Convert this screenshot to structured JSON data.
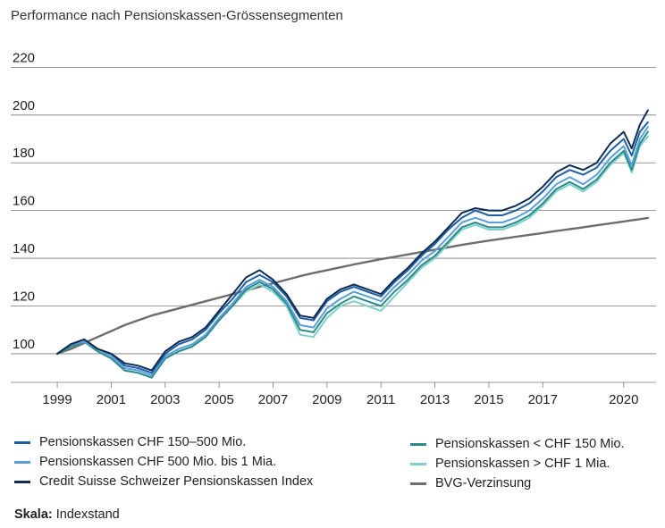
{
  "chart_data": {
    "type": "line",
    "title": "Performance nach Pensionskassen-Grössensegmenten",
    "xlabel": "",
    "ylabel": "",
    "xlim": [
      1998.6,
      2021.2
    ],
    "ylim": [
      88,
      225
    ],
    "yticks": [
      100,
      120,
      140,
      160,
      180,
      200,
      220
    ],
    "xticks": [
      "1999",
      "2001",
      "2003",
      "2005",
      "2007",
      "2009",
      "2011",
      "2013",
      "2015",
      "2017",
      "2020"
    ],
    "grid": "horizontal",
    "legend_position": "bottom",
    "x": [
      1999.0,
      1999.5,
      2000.0,
      2000.5,
      2001.0,
      2001.5,
      2002.0,
      2002.5,
      2003.0,
      2003.5,
      2004.0,
      2004.5,
      2005.0,
      2005.5,
      2006.0,
      2006.5,
      2007.0,
      2007.5,
      2008.0,
      2008.5,
      2009.0,
      2009.5,
      2010.0,
      2010.5,
      2011.0,
      2011.5,
      2012.0,
      2012.5,
      2013.0,
      2013.5,
      2014.0,
      2014.5,
      2015.0,
      2015.5,
      2016.0,
      2016.5,
      2017.0,
      2017.5,
      2018.0,
      2018.5,
      2019.0,
      2019.5,
      2020.0,
      2020.3,
      2020.6,
      2020.9
    ],
    "series": [
      {
        "name": "Pensionskassen CHF 150–500 Mio.",
        "color": "#1f5fa6",
        "values": [
          100,
          104,
          106,
          102,
          100,
          95,
          94,
          92,
          100,
          104,
          106,
          110,
          117,
          123,
          130,
          133,
          130,
          124,
          115,
          114,
          122,
          126,
          128,
          126,
          124,
          130,
          135,
          141,
          146,
          152,
          157,
          160,
          158,
          158,
          160,
          163,
          168,
          174,
          177,
          175,
          178,
          185,
          190,
          183,
          193,
          197
        ]
      },
      {
        "name": "Pensionskassen CHF 500 Mio. bis 1 Mia.",
        "color": "#5b9fd8",
        "values": [
          100,
          104,
          105,
          102,
          99,
          94,
          93,
          91,
          99,
          102,
          104,
          108,
          115,
          121,
          128,
          131,
          128,
          122,
          112,
          111,
          119,
          123,
          126,
          124,
          122,
          128,
          133,
          139,
          143,
          149,
          155,
          157,
          155,
          155,
          157,
          160,
          165,
          171,
          174,
          171,
          175,
          182,
          187,
          179,
          190,
          195
        ]
      },
      {
        "name": "Credit Suisse Schweizer Pensionskassen Index",
        "color": "#0f2d52",
        "values": [
          100,
          104,
          106,
          102,
          100,
          96,
          95,
          93,
          101,
          105,
          107,
          111,
          118,
          125,
          132,
          135,
          131,
          125,
          116,
          115,
          123,
          127,
          129,
          127,
          125,
          131,
          136,
          142,
          147,
          153,
          159,
          161,
          160,
          160,
          162,
          165,
          170,
          176,
          179,
          177,
          180,
          188,
          193,
          186,
          196,
          202
        ]
      },
      {
        "name": "Pensionskassen < CHF 150 Mio.",
        "color": "#2a8a8c",
        "values": [
          100,
          103,
          105,
          101,
          98,
          93,
          92,
          90,
          98,
          101,
          103,
          107,
          114,
          120,
          127,
          130,
          127,
          121,
          110,
          109,
          117,
          121,
          124,
          122,
          120,
          126,
          131,
          137,
          141,
          147,
          153,
          155,
          153,
          153,
          155,
          158,
          163,
          169,
          172,
          169,
          173,
          180,
          185,
          177,
          188,
          193
        ]
      },
      {
        "name": "Pensionskassen > CHF 1 Mia.",
        "color": "#7fd0c8",
        "values": [
          100,
          103,
          105,
          101,
          98,
          93,
          92,
          90,
          98,
          101,
          103,
          107,
          114,
          120,
          126,
          129,
          126,
          120,
          108,
          107,
          115,
          120,
          122,
          120,
          118,
          124,
          130,
          136,
          140,
          146,
          152,
          154,
          152,
          152,
          154,
          157,
          162,
          168,
          171,
          168,
          172,
          179,
          184,
          176,
          187,
          191
        ]
      },
      {
        "name": "BVG-Verzinsung",
        "color": "#6d6d6d",
        "values": [
          100,
          102,
          104.5,
          107,
          109.5,
          112,
          114,
          116,
          117.5,
          119,
          120.5,
          122,
          123.5,
          125,
          126.5,
          128,
          129.5,
          131,
          132.5,
          133.8,
          135,
          136.2,
          137.4,
          138.5,
          139.6,
          140.6,
          141.6,
          142.6,
          143.6,
          144.6,
          145.6,
          146.5,
          147.4,
          148.2,
          149,
          149.8,
          150.6,
          151.4,
          152.2,
          153,
          153.8,
          154.6,
          155.4,
          155.9,
          156.4,
          156.9
        ]
      }
    ]
  },
  "footnote": {
    "label": "Skala:",
    "text": "Indexstand"
  }
}
